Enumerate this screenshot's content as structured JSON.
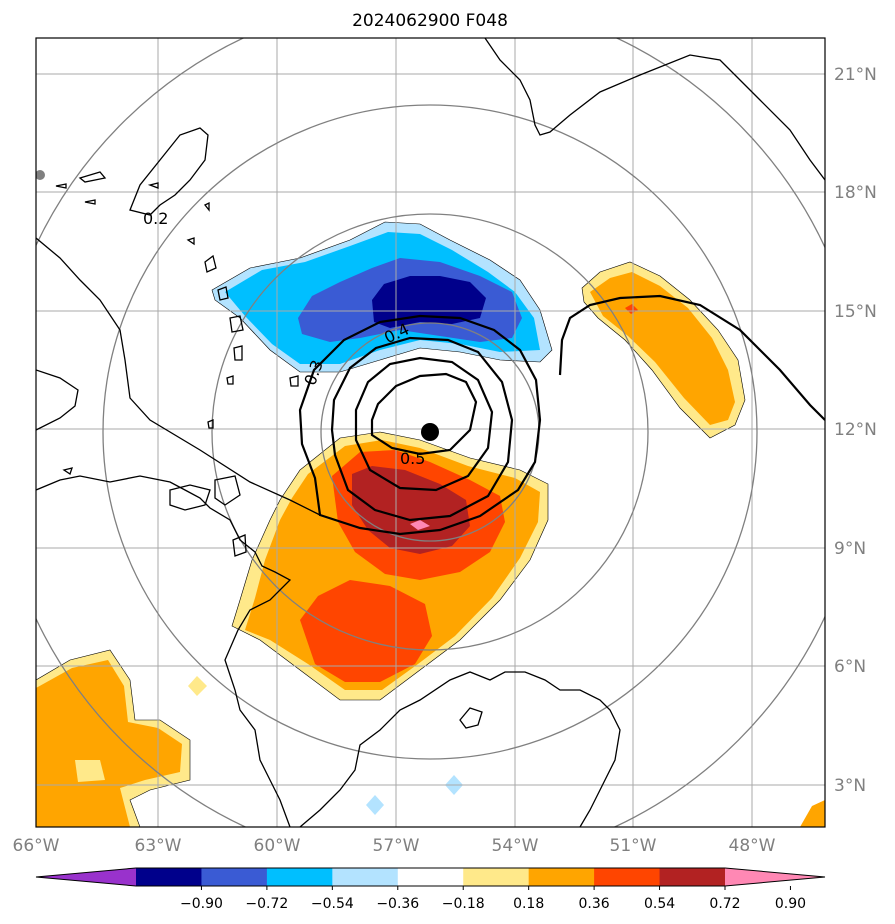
{
  "title": "2024062900 F048",
  "longitude_labels": [
    "66°W",
    "63°W",
    "60°W",
    "57°W",
    "54°W",
    "51°W",
    "48°W"
  ],
  "latitude_labels": [
    "21°N",
    "18°N",
    "15°N",
    "12°N",
    "9°N",
    "6°N",
    "3°N"
  ],
  "colorbar": {
    "tick_labels": [
      "−0.90",
      "−0.72",
      "−0.54",
      "−0.36",
      "−0.18",
      "0.18",
      "0.36",
      "0.54",
      "0.72",
      "0.90"
    ],
    "colors": [
      "#9932cc",
      "#00008b",
      "#3a5bd4",
      "#00bfff",
      "#b3e3ff",
      "#ffffff",
      "#ffe98a",
      "#ffa500",
      "#ff4500",
      "#b22222",
      "#ff88b4"
    ]
  },
  "contour_labels": [
    "0.2",
    "0.3",
    "0.4",
    "0.5"
  ],
  "colors": {
    "grid": "#a9a9a9",
    "range_rings": "#808080",
    "coastline": "#000000",
    "storm_center": "#000000"
  }
}
